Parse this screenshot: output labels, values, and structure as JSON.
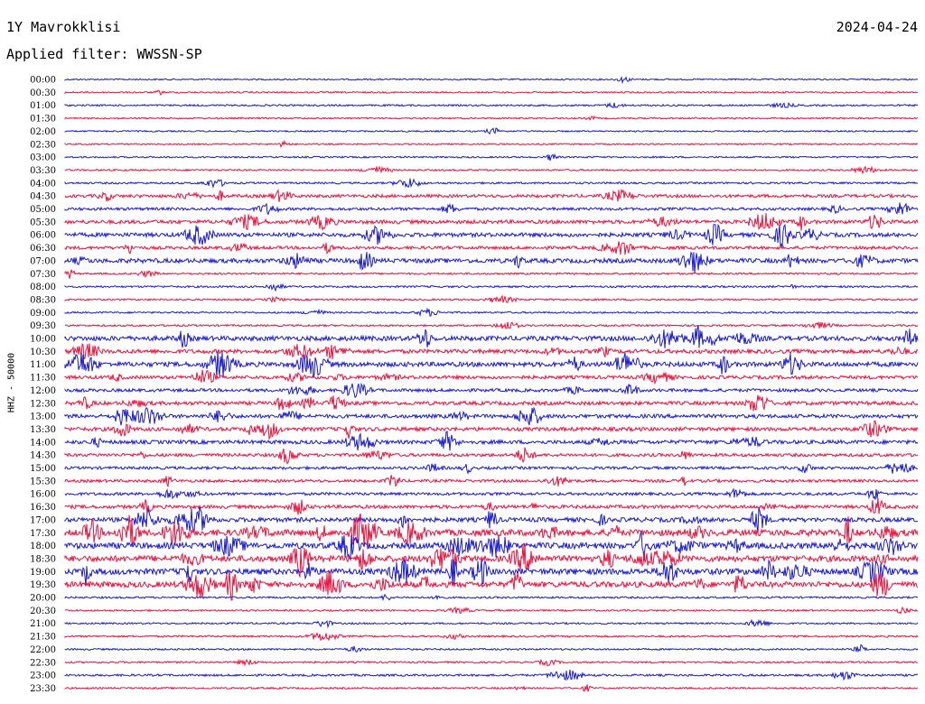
{
  "header": {
    "station": "1Y Mavrokklisi",
    "date": "2024-04-24",
    "filter_label": "Applied filter: WWSSN-SP",
    "channel_label": "HHZ - 50000"
  },
  "colors": {
    "even_trace": "#1a1ad6",
    "odd_trace": "#f0103c"
  },
  "chart_data": {
    "type": "line",
    "title": "1Y Mavrokklisi",
    "subtitle": "Applied filter: WWSSN-SP",
    "ylabel": "HHZ - 50000",
    "xlabel": "",
    "categories": [
      "00:00",
      "00:30",
      "01:00",
      "01:30",
      "02:00",
      "02:30",
      "03:00",
      "03:30",
      "04:00",
      "04:30",
      "05:00",
      "05:30",
      "06:00",
      "06:30",
      "07:00",
      "07:30",
      "08:00",
      "08:30",
      "09:00",
      "09:30",
      "10:00",
      "10:30",
      "11:00",
      "11:30",
      "12:00",
      "12:30",
      "13:00",
      "13:30",
      "14:00",
      "14:30",
      "15:00",
      "15:30",
      "16:00",
      "16:30",
      "17:00",
      "17:30",
      "18:00",
      "18:30",
      "19:00",
      "19:30",
      "20:00",
      "20:30",
      "21:00",
      "21:30",
      "22:00",
      "22:30",
      "23:00",
      "23:30"
    ],
    "activity_level": [
      0.08,
      0.1,
      0.12,
      0.1,
      0.08,
      0.08,
      0.1,
      0.12,
      0.15,
      0.35,
      0.3,
      0.45,
      0.5,
      0.35,
      0.55,
      0.15,
      0.15,
      0.12,
      0.12,
      0.15,
      0.6,
      0.5,
      0.6,
      0.4,
      0.35,
      0.45,
      0.45,
      0.45,
      0.45,
      0.35,
      0.3,
      0.3,
      0.3,
      0.4,
      0.55,
      0.85,
      0.8,
      0.8,
      0.8,
      0.75,
      0.15,
      0.12,
      0.12,
      0.15,
      0.12,
      0.12,
      0.18,
      0.12
    ],
    "grid": false
  }
}
